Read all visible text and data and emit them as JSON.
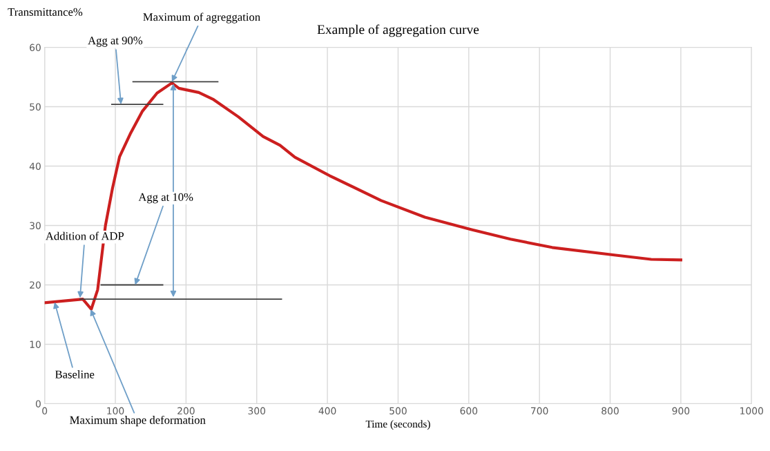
{
  "chart_data": {
    "type": "line",
    "title": "Example of aggregation curve",
    "xlabel": "Time (seconds)",
    "ylabel": "Transmittance%",
    "xlim": [
      0,
      1000
    ],
    "xticks": [
      0,
      100,
      200,
      300,
      400,
      500,
      600,
      700,
      800,
      900,
      1000
    ],
    "ylim": [
      0,
      60
    ],
    "yticks": [
      0,
      10,
      20,
      30,
      40,
      50,
      60
    ],
    "grid": true,
    "legend": false,
    "series": [
      {
        "color": "#cc1f1f",
        "x": [
          0,
          54,
          66,
          75,
          86,
          96,
          106,
          121,
          138,
          159,
          180,
          190,
          218,
          239,
          274,
          309,
          333,
          354,
          403,
          476,
          538,
          604,
          659,
          718,
          808,
          858,
          900
        ],
        "values": [
          17.0,
          17.6,
          15.9,
          19.2,
          30.0,
          36.3,
          41.6,
          45.4,
          49.2,
          52.3,
          54.0,
          53.1,
          52.4,
          51.2,
          48.3,
          45.0,
          43.5,
          41.5,
          38.4,
          34.2,
          31.4,
          29.3,
          27.7,
          26.3,
          25.0,
          24.3,
          24.2
        ]
      },
      {
        "color": "#404040",
        "x": [
          50,
          335
        ],
        "values": [
          17.6,
          17.6
        ]
      },
      {
        "color": "#404040",
        "x": [
          80,
          167
        ],
        "values": [
          20.0,
          20.0
        ]
      },
      {
        "color": "#404040",
        "x": [
          95,
          167
        ],
        "values": [
          50.4,
          50.4
        ]
      },
      {
        "color": "#404040",
        "x": [
          125,
          245
        ],
        "values": [
          54.2,
          54.2
        ]
      }
    ],
    "annotations": [
      {
        "text": "Baseline",
        "x": 14,
        "y": 17.1
      },
      {
        "text": "Addition of ADP",
        "x": 50,
        "y": 17.8
      },
      {
        "text": "Maximum shape deformation",
        "x": 65,
        "y": 15.9
      },
      {
        "text": "Agg at 10%",
        "x": 128,
        "y": 20.0
      },
      {
        "text": "Agg at 90%",
        "x": 108,
        "y": 50.4
      },
      {
        "text": "Maximum of agreggation",
        "x": 180,
        "y": 54.2
      }
    ]
  }
}
